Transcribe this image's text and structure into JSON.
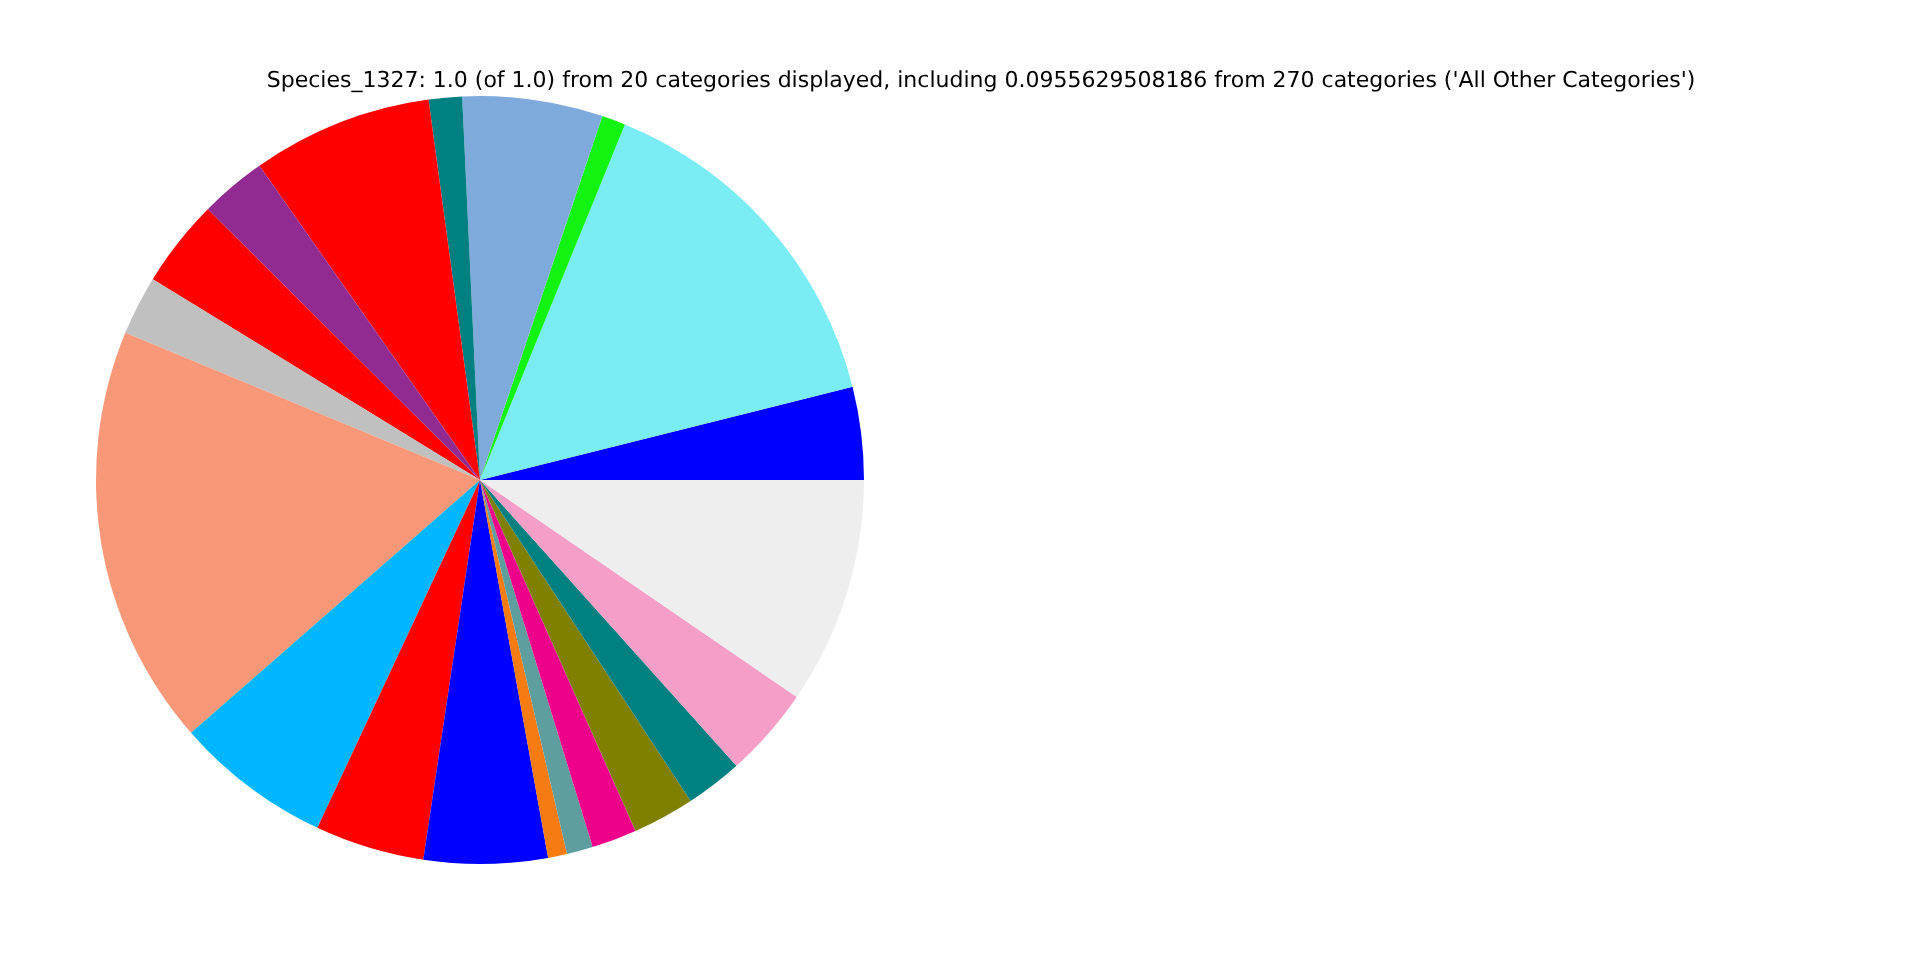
{
  "chart_data": {
    "type": "pie",
    "title": "Species_1327: 1.0 (of 1.0) from 20 categories displayed, including 0.0955629508186 from 270 categories ('All Other Categories')",
    "categories": [
      null,
      null,
      null,
      null,
      null,
      null,
      null,
      null,
      null,
      null,
      null,
      null,
      null,
      null,
      null,
      null,
      null,
      null,
      null,
      null
    ],
    "values": [
      3.9,
      14.94,
      1.0,
      5.9,
      1.4,
      7.6,
      2.8,
      3.7,
      2.5,
      17.7,
      6.6,
      4.6,
      5.2,
      0.8,
      1.1,
      1.9,
      2.6,
      2.4,
      3.8,
      9.56
    ],
    "colors": [
      "#0000ff",
      "#7aecf4",
      "#12f312",
      "#7faadc",
      "#008080",
      "#ff0000",
      "#922b91",
      "#ff0000",
      "#c0c0c0",
      "#f89878",
      "#00b6ff",
      "#ff0000",
      "#0000ff",
      "#f57b12",
      "#5f9e9e",
      "#ee008b",
      "#808000",
      "#008080",
      "#f59ec8",
      "#eeeeee"
    ],
    "legend": false
  }
}
